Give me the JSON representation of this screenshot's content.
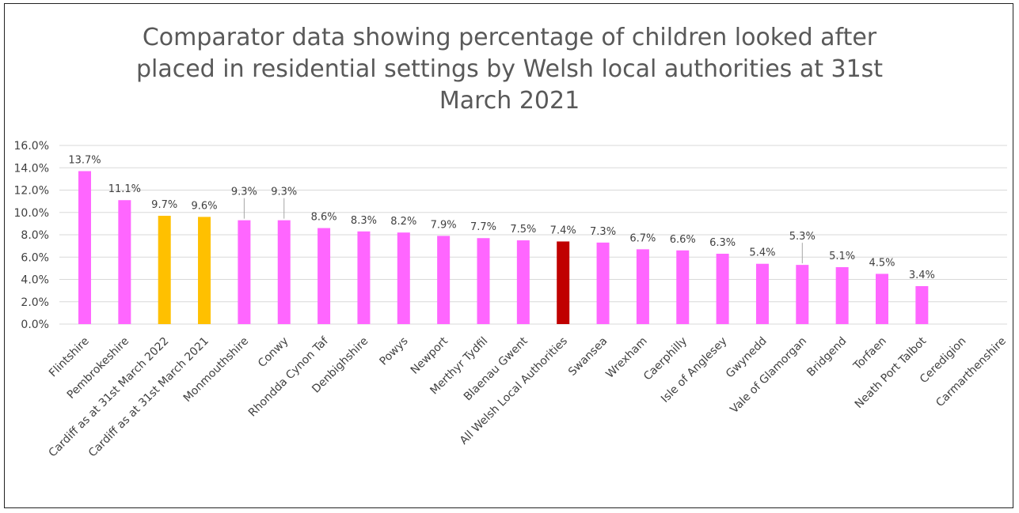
{
  "chart_data": {
    "type": "bar",
    "title_lines": [
      "Comparator data showing percentage of children looked after",
      "placed in residential settings by Welsh local authorities at 31st",
      "March 2021"
    ],
    "categories": [
      "Flintshire",
      "Pembrokeshire",
      "Cardiff as at 31st March 2022",
      "Cardiff as at 31st March 2021",
      "Monmouthshire",
      "Conwy",
      "Rhondda Cynon Taf",
      "Denbighshire",
      "Powys",
      "Newport",
      "Merthyr Tydfil",
      "Blaenau Gwent",
      "All Welsh Local Authorities",
      "Swansea",
      "Wrexham",
      "Caerphilly",
      "Isle of Anglesey",
      "Gwynedd",
      "Vale of Glamorgan",
      "Bridgend",
      "Torfaen",
      "Neath Port Talbot",
      "Ceredigion",
      "Carmarthenshire"
    ],
    "values": [
      13.7,
      11.1,
      9.7,
      9.6,
      9.3,
      9.3,
      8.6,
      8.3,
      8.2,
      7.9,
      7.7,
      7.5,
      7.4,
      7.3,
      6.7,
      6.6,
      6.3,
      5.4,
      5.3,
      5.1,
      4.5,
      3.4,
      null,
      null
    ],
    "data_labels": [
      "13.7%",
      "11.1%",
      "9.7%",
      "9.6%",
      "9.3%",
      "9.3%",
      "8.6%",
      "8.3%",
      "8.2%",
      "7.9%",
      "7.7%",
      "7.5%",
      "7.4%",
      "7.3%",
      "6.7%",
      "6.6%",
      "6.3%",
      "5.4%",
      "5.3%",
      "5.1%",
      "4.5%",
      "3.4%",
      "",
      ""
    ],
    "bar_colors": [
      "#ff66ff",
      "#ff66ff",
      "#ffc000",
      "#ffc000",
      "#ff66ff",
      "#ff66ff",
      "#ff66ff",
      "#ff66ff",
      "#ff66ff",
      "#ff66ff",
      "#ff66ff",
      "#ff66ff",
      "#c00000",
      "#ff66ff",
      "#ff66ff",
      "#ff66ff",
      "#ff66ff",
      "#ff66ff",
      "#ff66ff",
      "#ff66ff",
      "#ff66ff",
      "#ff66ff",
      "#ff66ff",
      "#ff66ff"
    ],
    "y_ticks": [
      "0.0%",
      "2.0%",
      "4.0%",
      "6.0%",
      "8.0%",
      "10.0%",
      "12.0%",
      "14.0%",
      "16.0%"
    ],
    "ylim": [
      0,
      16
    ],
    "grid": true,
    "legend": "none",
    "xlabel": "",
    "ylabel": ""
  },
  "colors": {
    "default_bar": "#ff66ff",
    "cardiff_bar": "#ffc000",
    "all_wales_bar": "#c00000",
    "gridline": "#d9d9d9",
    "text": "#404040",
    "title": "#595959"
  }
}
